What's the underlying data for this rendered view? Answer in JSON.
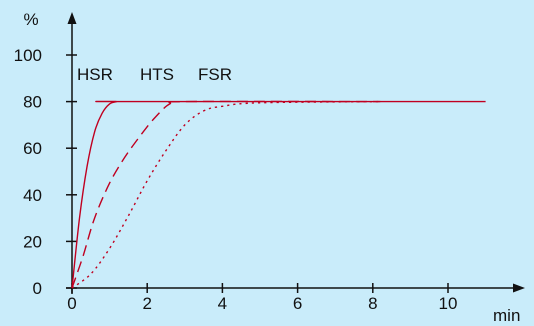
{
  "chart_data": {
    "type": "line",
    "xlabel": "min",
    "ylabel": "%",
    "xlim": [
      0,
      12
    ],
    "ylim": [
      0,
      100
    ],
    "x_ticks": [
      0,
      2,
      4,
      6,
      8,
      10
    ],
    "y_ticks": [
      0,
      20,
      40,
      60,
      80,
      100
    ],
    "grid": false,
    "background_color": "#c9ecfa",
    "line_color": "#c00020",
    "series": [
      {
        "name": "HSR",
        "line_style": "solid",
        "x": [
          0,
          0.2,
          0.4,
          0.6,
          0.8,
          1.0,
          1.2,
          1.4,
          11
        ],
        "y": [
          0,
          30,
          52,
          67,
          75,
          79,
          80,
          80,
          80
        ]
      },
      {
        "name": "HTS",
        "line_style": "dashed",
        "x": [
          0,
          0.3,
          0.6,
          1.0,
          1.4,
          1.8,
          2.2,
          2.6,
          3.0,
          8.2
        ],
        "y": [
          0,
          14,
          30,
          45,
          56,
          65,
          73,
          79,
          80,
          80
        ]
      },
      {
        "name": "FSR",
        "line_style": "dotted",
        "x": [
          0,
          0.5,
          1.0,
          1.5,
          2.0,
          2.5,
          3.0,
          3.5,
          4.0,
          5.0,
          8.2
        ],
        "y": [
          0,
          6,
          17,
          31,
          46,
          59,
          70,
          76,
          78,
          79.5,
          80
        ]
      }
    ]
  }
}
